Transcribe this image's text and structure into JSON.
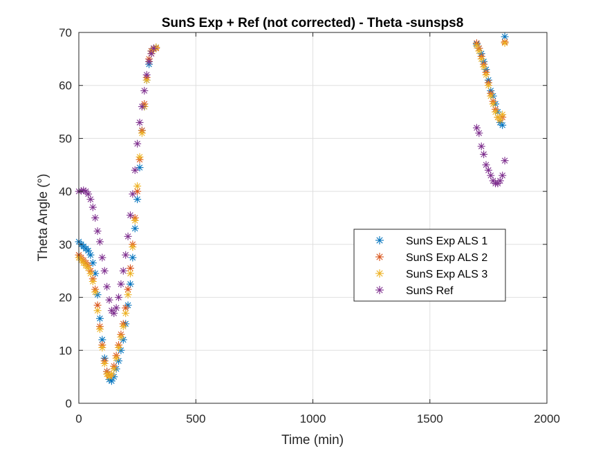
{
  "chart_data": {
    "type": "scatter",
    "title": "SunS Exp + Ref (not corrected) - Theta -sunsps8",
    "xlabel": "Time (min)",
    "ylabel": "Theta Angle (°)",
    "xlim": [
      0,
      2000
    ],
    "ylim": [
      0,
      70
    ],
    "xticks": [
      0,
      500,
      1000,
      1500,
      2000
    ],
    "yticks": [
      0,
      10,
      20,
      30,
      40,
      50,
      60,
      70
    ],
    "x_tick_labels": [
      "0",
      "500",
      "1000",
      "1500",
      "2000"
    ],
    "y_tick_labels": [
      "0",
      "10",
      "20",
      "30",
      "40",
      "50",
      "60",
      "70"
    ],
    "grid": true,
    "legend_position": "center-right",
    "marker": "asterisk",
    "series": [
      {
        "name": "SunS Exp ALS 1",
        "color": "#0072BD",
        "points": [
          [
            0,
            30.5
          ],
          [
            10,
            30.0
          ],
          [
            20,
            29.6
          ],
          [
            30,
            29.2
          ],
          [
            40,
            28.8
          ],
          [
            50,
            28.0
          ],
          [
            60,
            26.5
          ],
          [
            70,
            24.5
          ],
          [
            80,
            20.5
          ],
          [
            90,
            16.0
          ],
          [
            100,
            12.0
          ],
          [
            110,
            8.5
          ],
          [
            120,
            6.0
          ],
          [
            130,
            4.5
          ],
          [
            140,
            4.2
          ],
          [
            150,
            5.0
          ],
          [
            160,
            6.5
          ],
          [
            170,
            8.0
          ],
          [
            180,
            10.0
          ],
          [
            190,
            12.0
          ],
          [
            200,
            15.0
          ],
          [
            210,
            18.5
          ],
          [
            220,
            22.5
          ],
          [
            230,
            27.5
          ],
          [
            240,
            33.0
          ],
          [
            250,
            38.5
          ],
          [
            260,
            44.5
          ],
          [
            270,
            51.5
          ],
          [
            280,
            56.0
          ],
          [
            290,
            61.0
          ],
          [
            300,
            64.0
          ],
          [
            310,
            66.5
          ],
          [
            320,
            67.0
          ],
          [
            330,
            67.2
          ],
          [
            1700,
            67.8
          ],
          [
            1710,
            67.0
          ],
          [
            1720,
            66.0
          ],
          [
            1730,
            64.5
          ],
          [
            1740,
            63.0
          ],
          [
            1750,
            61.0
          ],
          [
            1760,
            59.0
          ],
          [
            1770,
            58.0
          ],
          [
            1780,
            56.5
          ],
          [
            1790,
            55.0
          ],
          [
            1800,
            53.0
          ],
          [
            1810,
            52.5
          ],
          [
            1820,
            69.2
          ]
        ]
      },
      {
        "name": "SunS Exp ALS 2",
        "color": "#D95319",
        "points": [
          [
            0,
            28.0
          ],
          [
            10,
            27.5
          ],
          [
            20,
            27.0
          ],
          [
            30,
            26.5
          ],
          [
            40,
            26.0
          ],
          [
            50,
            25.0
          ],
          [
            60,
            23.5
          ],
          [
            70,
            21.5
          ],
          [
            80,
            18.5
          ],
          [
            90,
            14.5
          ],
          [
            100,
            11.0
          ],
          [
            110,
            8.0
          ],
          [
            120,
            6.0
          ],
          [
            130,
            5.2
          ],
          [
            140,
            5.5
          ],
          [
            150,
            7.0
          ],
          [
            160,
            9.0
          ],
          [
            170,
            11.0
          ],
          [
            180,
            13.0
          ],
          [
            190,
            15.0
          ],
          [
            200,
            18.0
          ],
          [
            210,
            21.5
          ],
          [
            220,
            25.5
          ],
          [
            230,
            30.0
          ],
          [
            240,
            35.0
          ],
          [
            250,
            40.0
          ],
          [
            260,
            46.0
          ],
          [
            270,
            51.5
          ],
          [
            280,
            56.5
          ],
          [
            290,
            61.5
          ],
          [
            300,
            65.0
          ],
          [
            310,
            66.5
          ],
          [
            320,
            67.0
          ],
          [
            330,
            67.0
          ],
          [
            1700,
            68.0
          ],
          [
            1710,
            67.0
          ],
          [
            1720,
            65.5
          ],
          [
            1730,
            64.0
          ],
          [
            1740,
            62.5
          ],
          [
            1750,
            60.5
          ],
          [
            1760,
            58.5
          ],
          [
            1770,
            57.0
          ],
          [
            1780,
            55.5
          ],
          [
            1790,
            54.0
          ],
          [
            1800,
            53.5
          ],
          [
            1810,
            54.0
          ],
          [
            1820,
            68.2
          ]
        ]
      },
      {
        "name": "SunS Exp ALS 3",
        "color": "#EDB120",
        "points": [
          [
            0,
            27.5
          ],
          [
            10,
            27.0
          ],
          [
            20,
            26.5
          ],
          [
            30,
            26.0
          ],
          [
            40,
            25.5
          ],
          [
            50,
            24.5
          ],
          [
            60,
            23.0
          ],
          [
            70,
            21.0
          ],
          [
            80,
            17.5
          ],
          [
            90,
            14.0
          ],
          [
            100,
            10.5
          ],
          [
            110,
            7.5
          ],
          [
            120,
            5.5
          ],
          [
            130,
            5.0
          ],
          [
            140,
            5.5
          ],
          [
            150,
            6.5
          ],
          [
            160,
            8.5
          ],
          [
            170,
            10.5
          ],
          [
            180,
            12.5
          ],
          [
            190,
            14.5
          ],
          [
            200,
            17.0
          ],
          [
            210,
            20.5
          ],
          [
            220,
            24.5
          ],
          [
            230,
            29.5
          ],
          [
            240,
            34.5
          ],
          [
            250,
            41.0
          ],
          [
            260,
            46.5
          ],
          [
            270,
            51.0
          ],
          [
            280,
            56.0
          ],
          [
            290,
            61.0
          ],
          [
            300,
            64.5
          ],
          [
            310,
            66.0
          ],
          [
            320,
            66.8
          ],
          [
            330,
            67.2
          ],
          [
            1700,
            67.5
          ],
          [
            1710,
            66.5
          ],
          [
            1720,
            65.0
          ],
          [
            1730,
            63.5
          ],
          [
            1740,
            62.0
          ],
          [
            1750,
            60.0
          ],
          [
            1760,
            58.0
          ],
          [
            1770,
            56.5
          ],
          [
            1780,
            55.0
          ],
          [
            1790,
            54.0
          ],
          [
            1800,
            53.5
          ],
          [
            1810,
            54.5
          ],
          [
            1820,
            68.0
          ]
        ]
      },
      {
        "name": "SunS Ref",
        "color": "#7E2F8E",
        "points": [
          [
            0,
            40.0
          ],
          [
            10,
            40.1
          ],
          [
            20,
            40.2
          ],
          [
            30,
            40.0
          ],
          [
            40,
            39.5
          ],
          [
            50,
            38.5
          ],
          [
            60,
            37.0
          ],
          [
            70,
            35.0
          ],
          [
            80,
            32.5
          ],
          [
            90,
            30.5
          ],
          [
            100,
            27.5
          ],
          [
            110,
            25.0
          ],
          [
            120,
            22.0
          ],
          [
            130,
            19.5
          ],
          [
            140,
            17.5
          ],
          [
            150,
            17.0
          ],
          [
            160,
            18.0
          ],
          [
            170,
            20.0
          ],
          [
            180,
            22.5
          ],
          [
            190,
            25.0
          ],
          [
            200,
            28.0
          ],
          [
            210,
            31.5
          ],
          [
            220,
            35.5
          ],
          [
            230,
            39.5
          ],
          [
            240,
            44.0
          ],
          [
            250,
            49.0
          ],
          [
            260,
            53.0
          ],
          [
            270,
            56.0
          ],
          [
            280,
            59.0
          ],
          [
            290,
            62.0
          ],
          [
            300,
            64.5
          ],
          [
            310,
            66.0
          ],
          [
            320,
            67.0
          ],
          [
            1700,
            52.0
          ],
          [
            1710,
            51.0
          ],
          [
            1720,
            48.5
          ],
          [
            1730,
            47.0
          ],
          [
            1740,
            45.0
          ],
          [
            1750,
            44.0
          ],
          [
            1760,
            43.0
          ],
          [
            1770,
            42.0
          ],
          [
            1780,
            41.5
          ],
          [
            1790,
            41.5
          ],
          [
            1800,
            42.0
          ],
          [
            1810,
            43.0
          ],
          [
            1820,
            45.8
          ]
        ]
      }
    ]
  }
}
